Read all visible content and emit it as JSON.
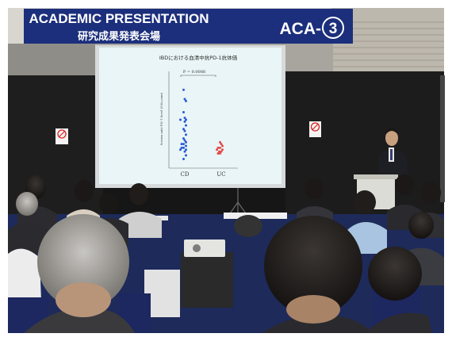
{
  "banner": {
    "title": "ACADEMIC PRESENTATION",
    "subtitle": "研究成果発表会場",
    "code": "ACA-",
    "code_number": "3",
    "color": "#1c2f7c"
  },
  "slide": {
    "title": "IBDにおける血清中抗PD-1抗体価",
    "p_value": "P = 0.0088",
    "ylabel": "Serum anti-PD-1 level (OD₄₅₀nm)",
    "background": "#e9f5f7"
  },
  "chart_data": {
    "type": "scatter",
    "categories": [
      "CD",
      "UC"
    ],
    "series": [
      {
        "name": "CD",
        "color": "#2a5bd4",
        "values": [
          4.1,
          3.6,
          3.5,
          2.9,
          2.6,
          2.5,
          2.5,
          2.4,
          2.2,
          2.0,
          1.9,
          1.7,
          1.5,
          1.4,
          1.3,
          1.2,
          1.2,
          1.1,
          1.0,
          1.0,
          0.9,
          0.9,
          0.8,
          0.6,
          0.4
        ]
      },
      {
        "name": "UC",
        "color": "#e14b4b",
        "values": [
          1.3,
          1.2,
          1.1,
          1.0,
          1.0,
          0.9,
          0.9,
          0.8,
          0.8,
          0.7,
          0.7
        ]
      }
    ],
    "ylim": [
      0,
      5
    ]
  },
  "signs": {
    "no_smoking_symbol": "no-smoking-icon"
  }
}
